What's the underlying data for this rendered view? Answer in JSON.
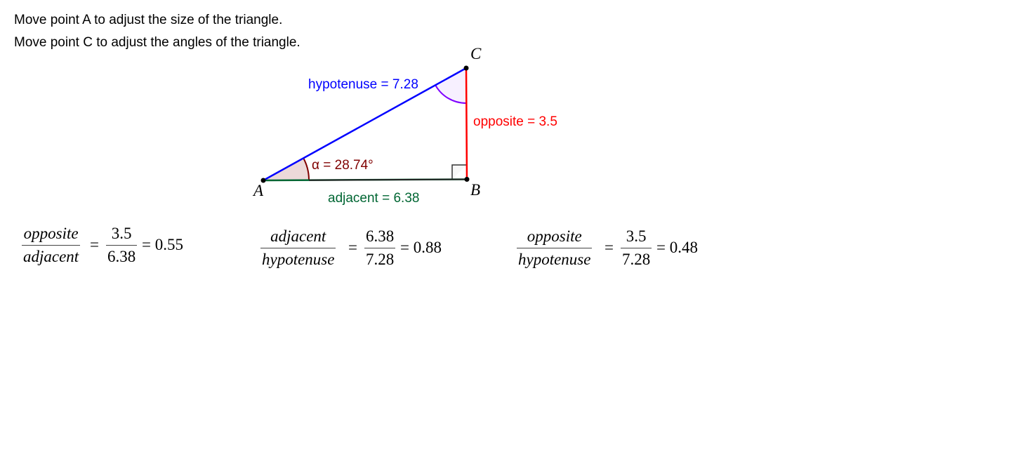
{
  "instructions": [
    "Move point A to adjust the size of the triangle.",
    "Move point C to adjust the angles of the triangle."
  ],
  "triangle": {
    "points": {
      "A": "A",
      "B": "B",
      "C": "C"
    },
    "hypotenuse_label": "hypotenuse = 7.28",
    "opposite_label": "opposite = 3.5",
    "adjacent_label": "adjacent = 6.38",
    "angle_label": "α = 28.74°",
    "colors": {
      "hypotenuse": "#0000ff",
      "opposite": "#ff0000",
      "adjacent": "#006633",
      "angle_alpha": "#800000",
      "angle_c": "#7f00ff"
    }
  },
  "ratios": [
    {
      "numerator": "opposite",
      "denominator": "adjacent",
      "num_value": "3.5",
      "den_value": "6.38",
      "result": "= 0.55"
    },
    {
      "numerator": "adjacent",
      "denominator": "hypotenuse",
      "num_value": "6.38",
      "den_value": "7.28",
      "result": "= 0.88"
    },
    {
      "numerator": "opposite",
      "denominator": "hypotenuse",
      "num_value": "3.5",
      "den_value": "7.28",
      "result": "= 0.48"
    }
  ],
  "equals": "="
}
